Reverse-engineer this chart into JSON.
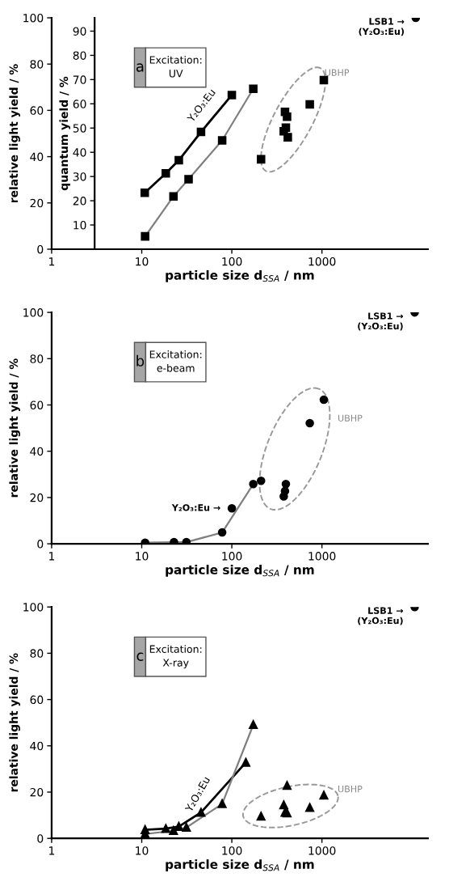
{
  "chart_data": [
    {
      "type": "line",
      "xlabel": "particle size d$_{SSA}$ / nm",
      "ylabel": "relative light yield / %",
      "y2label": "quantum yield / %",
      "log": "x",
      "grid": false,
      "legend": false,
      "xlim": [
        1,
        15000
      ],
      "xticks": [
        1,
        10,
        100,
        1000
      ],
      "ylim": [
        0,
        100
      ],
      "yticks": [
        0,
        20,
        40,
        60,
        80,
        100
      ],
      "y2lim": [
        0,
        95.5
      ],
      "y2ticks": [
        10,
        20,
        30,
        40,
        50,
        60,
        70,
        80,
        90
      ],
      "annotations": [
        "a",
        "Excitation:\nUV",
        "UBHP",
        "Y₂O₃:Eu",
        {
          "text": "LSB1 →\n(Y₂O₃:Eu)",
          "x": 11000,
          "y": 100
        }
      ],
      "series": [
        {
          "axis": "y2",
          "marker": "square",
          "color": "#000000",
          "x": [
            10.8,
            18.5,
            25.8,
            45.5,
            100
          ],
          "values": [
            23.3,
            31.3,
            36.7,
            48.4,
            63.6
          ]
        },
        {
          "axis": "y2",
          "marker": "square",
          "color": "#7f7f7f",
          "x": [
            10.9,
            22.5,
            33.1,
            78.1,
            173
          ],
          "values": [
            5.3,
            21.8,
            28.9,
            44.9,
            66.2
          ]
        },
        {
          "type": "scatter",
          "axis": "y2",
          "marker": "square",
          "color": "#000000",
          "x": [
            211,
            377,
            398,
            389,
            410,
            418,
            733,
            1050
          ],
          "values": [
            37.1,
            48.7,
            50.2,
            56.7,
            54.7,
            46.2,
            59.8,
            69.8
          ]
        },
        {
          "type": "scatter",
          "marker": "circle",
          "color": "#000000",
          "x": [
            11000
          ],
          "values": [
            100
          ]
        }
      ]
    },
    {
      "type": "line",
      "xlabel": "particle size d$_{SSA}$ / nm",
      "ylabel": "relative light yield / %",
      "log": "x",
      "grid": false,
      "legend": false,
      "xlim": [
        1,
        15000
      ],
      "xticks": [
        1,
        10,
        100,
        1000
      ],
      "ylim": [
        0,
        100
      ],
      "yticks": [
        0,
        20,
        40,
        60,
        80,
        100
      ],
      "annotations": [
        "b",
        "Excitation:\ne-beam",
        "UBHP",
        {
          "text": "Y₂O₃:Eu →",
          "x": 100,
          "y": 15.3
        },
        {
          "text": "LSB1 →\n(Y₂O₃:Eu)",
          "x": 10700,
          "y": 100
        }
      ],
      "series": [
        {
          "marker": "circle",
          "color": "#7f7f7f",
          "x": [
            10.9,
            22.8,
            31.3,
            78.1,
            173
          ],
          "values": [
            0.5,
            0.7,
            0.7,
            4.9,
            25.8
          ]
        },
        {
          "type": "scatter",
          "marker": "circle",
          "color": "#000000",
          "x": [
            100
          ],
          "values": [
            15.3
          ]
        },
        {
          "type": "scatter",
          "marker": "circle",
          "color": "#000000",
          "x": [
            211,
            377,
            389,
            398,
            733,
            1050
          ],
          "values": [
            27.2,
            20.5,
            22.8,
            25.8,
            52.1,
            62.3
          ]
        },
        {
          "type": "scatter",
          "marker": "circle",
          "color": "#000000",
          "x": [
            10700
          ],
          "values": [
            100
          ]
        }
      ]
    },
    {
      "type": "line",
      "xlabel": "particle size d$_{SSA}$ / nm",
      "ylabel": "relative light yield / %",
      "log": "x",
      "grid": false,
      "legend": false,
      "xlim": [
        1,
        15000
      ],
      "xticks": [
        1,
        10,
        100,
        1000
      ],
      "ylim": [
        0,
        100
      ],
      "yticks": [
        0,
        20,
        40,
        60,
        80,
        100
      ],
      "annotations": [
        "c",
        "Excitation:\nX-ray",
        "UBHP",
        "Y₂O₃:Eu",
        {
          "text": "LSB1 →\n(Y₂O₃:Eu)",
          "x": 10700,
          "y": 100
        }
      ],
      "series": [
        {
          "marker": "triangle",
          "color": "#000000",
          "x": [
            10.9,
            18.5,
            25.8,
            45.5,
            143
          ],
          "values": [
            3.7,
            4.2,
            5.1,
            11.2,
            32.8
          ]
        },
        {
          "marker": "triangle",
          "color": "#7f7f7f",
          "x": [
            10.9,
            22.5,
            31.3,
            78.1,
            173
          ],
          "values": [
            1.9,
            3.3,
            4.7,
            14.9,
            49.1
          ]
        },
        {
          "type": "scatter",
          "marker": "triangle",
          "color": "#000000",
          "x": [
            211,
            377,
            389,
            410,
            410,
            733,
            1050
          ],
          "values": [
            9.5,
            14.4,
            11.2,
            10.9,
            22.8,
            13.3,
            18.6
          ]
        },
        {
          "type": "scatter",
          "marker": "circle",
          "color": "#000000",
          "x": [
            10700
          ],
          "values": [
            100
          ]
        }
      ]
    }
  ]
}
